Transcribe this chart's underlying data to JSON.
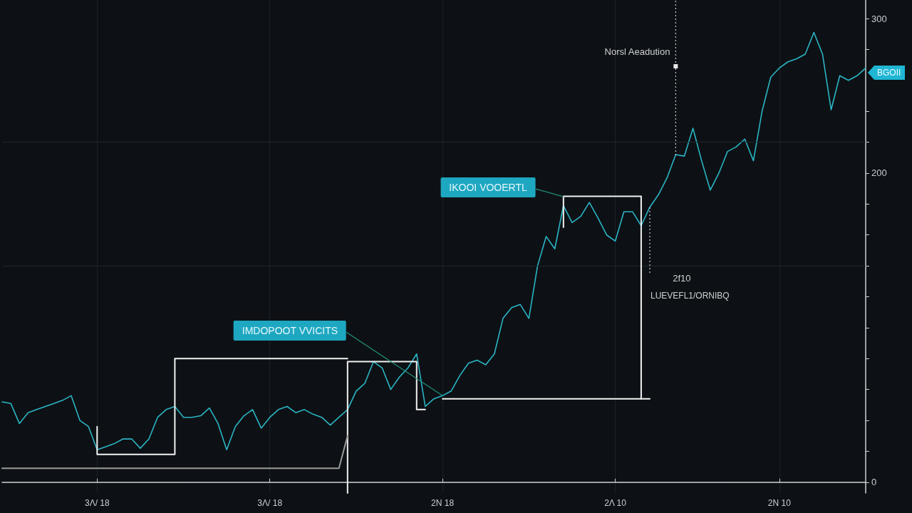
{
  "chart_data": {
    "type": "line",
    "categories": [
      null,
      null,
      null,
      null,
      null,
      null,
      null,
      null,
      null,
      null,
      null,
      "3Λ/ 18",
      null,
      null,
      null,
      null,
      null,
      null,
      null,
      null,
      null,
      null,
      null,
      null,
      null,
      null,
      null,
      null,
      null,
      null,
      null,
      "3Λ/ 18",
      null,
      null,
      null,
      null,
      null,
      null,
      null,
      null,
      null,
      null,
      null,
      null,
      null,
      null,
      null,
      null,
      null,
      null,
      null,
      "2N 18",
      null,
      null,
      null,
      null,
      null,
      null,
      null,
      null,
      null,
      null,
      null,
      null,
      null,
      null,
      null,
      null,
      null,
      null,
      null,
      "2Λ 10",
      null,
      null,
      null,
      null,
      null,
      null,
      null,
      null,
      null,
      null,
      null,
      null,
      null,
      null,
      null,
      null,
      null,
      null,
      "2N 10",
      null,
      null,
      null,
      null,
      null,
      null,
      null,
      null,
      null,
      null
    ],
    "series": [
      {
        "color": "#2bb5c5",
        "values": [
          52,
          51,
          38,
          45,
          47,
          49,
          51,
          53,
          56,
          40,
          36,
          21,
          23,
          25,
          28,
          28,
          22,
          28,
          42,
          47,
          49,
          42,
          42,
          43,
          48,
          38,
          21,
          36,
          43,
          47,
          35,
          42,
          47,
          49,
          45,
          47,
          44,
          42,
          37,
          42,
          47,
          59,
          64,
          78,
          74,
          60,
          68,
          74,
          83,
          49,
          54,
          56,
          59,
          69,
          77,
          79,
          76,
          83,
          106,
          113,
          115,
          106,
          140,
          159,
          151,
          179,
          168,
          172,
          181,
          171,
          160,
          156,
          175,
          175,
          166,
          178,
          186,
          197,
          212,
          211,
          229,
          208,
          189,
          200,
          214,
          217,
          222,
          208,
          240,
          262,
          268,
          272,
          274,
          277,
          291,
          277,
          241,
          263,
          260,
          263,
          268
        ]
      },
      {
        "type": "step",
        "color": "#f2f2f2",
        "values": [
          null,
          null,
          null,
          null,
          null,
          null,
          null,
          null,
          null,
          null,
          null,
          36,
          18,
          18,
          18,
          18,
          18,
          18,
          18,
          18,
          18,
          80,
          80,
          80,
          80,
          80,
          80,
          80,
          80,
          80,
          80,
          80,
          80,
          80,
          80,
          80,
          80,
          80,
          80,
          80,
          80,
          null,
          null,
          null,
          null,
          null,
          null,
          null,
          null,
          null,
          null,
          null,
          null,
          null,
          null,
          null,
          null,
          null,
          null,
          null,
          null,
          null,
          null,
          null,
          null,
          null,
          null,
          null,
          null,
          null,
          null,
          null,
          null,
          null,
          null,
          null,
          null,
          null,
          null,
          null,
          null,
          null,
          null,
          null,
          null,
          null,
          null,
          null,
          null,
          null,
          null,
          null,
          null,
          null,
          null,
          null,
          null,
          null,
          null,
          null,
          null
        ]
      },
      {
        "type": "step",
        "color": "#f2f2f2",
        "values": [
          null,
          null,
          null,
          null,
          null,
          null,
          null,
          null,
          null,
          null,
          null,
          null,
          null,
          null,
          null,
          null,
          null,
          null,
          null,
          null,
          null,
          null,
          null,
          null,
          null,
          null,
          null,
          null,
          null,
          null,
          null,
          null,
          null,
          null,
          null,
          null,
          null,
          null,
          null,
          null,
          -7,
          78,
          78,
          78,
          78,
          78,
          78,
          78,
          78,
          47,
          null,
          null,
          null,
          null,
          null,
          null,
          null,
          null,
          null,
          null,
          null,
          null,
          null,
          null,
          null,
          null,
          null,
          null,
          null,
          null,
          null,
          null,
          null,
          null,
          null,
          null,
          null,
          null,
          null,
          null,
          null,
          null,
          null,
          null,
          null,
          null,
          null,
          null,
          null,
          null,
          null,
          null,
          null,
          null,
          null,
          null,
          null,
          null,
          null,
          null,
          null
        ]
      },
      {
        "type": "step",
        "color": "#f2f2f2",
        "values": [
          null,
          null,
          null,
          null,
          null,
          null,
          null,
          null,
          null,
          null,
          null,
          null,
          null,
          null,
          null,
          null,
          null,
          null,
          null,
          null,
          null,
          null,
          null,
          null,
          null,
          null,
          null,
          null,
          null,
          null,
          null,
          null,
          null,
          null,
          null,
          null,
          null,
          null,
          null,
          null,
          null,
          null,
          null,
          null,
          null,
          null,
          null,
          null,
          null,
          null,
          null,
          null,
          null,
          null,
          null,
          null,
          null,
          null,
          null,
          null,
          null,
          null,
          null,
          null,
          null,
          165,
          185,
          185,
          185,
          185,
          185,
          185,
          185,
          185,
          185,
          54,
          null,
          null,
          null,
          null,
          null,
          null,
          null,
          null,
          null,
          null,
          null,
          null,
          null,
          null,
          null,
          null,
          null,
          null,
          null,
          null,
          null,
          null,
          null,
          null,
          null
        ]
      },
      {
        "color": "#f2f2f2",
        "values": [
          null,
          null,
          null,
          null,
          null,
          null,
          null,
          null,
          null,
          null,
          null,
          null,
          null,
          null,
          null,
          null,
          null,
          null,
          null,
          null,
          null,
          null,
          null,
          null,
          null,
          null,
          null,
          null,
          null,
          null,
          null,
          null,
          null,
          null,
          null,
          null,
          null,
          null,
          null,
          null,
          null,
          null,
          null,
          null,
          null,
          null,
          null,
          null,
          null,
          null,
          null,
          54,
          54,
          54,
          54,
          54,
          54,
          54,
          54,
          54,
          54,
          54,
          54,
          54,
          54,
          54,
          54,
          54,
          54,
          54,
          54,
          54,
          54,
          54,
          54,
          null,
          null,
          null,
          null,
          null,
          null,
          null,
          null,
          null,
          null,
          null,
          null,
          null,
          null,
          null,
          null,
          null,
          null,
          null,
          null,
          null,
          null,
          null,
          null,
          null,
          null
        ]
      },
      {
        "color": "#9a9a9a",
        "values": [
          9,
          9,
          9,
          9,
          9,
          9,
          9,
          9,
          9,
          9,
          9,
          9,
          9,
          9,
          9,
          9,
          9,
          9,
          9,
          9,
          9,
          9,
          9,
          9,
          9,
          9,
          9,
          9,
          9,
          9,
          9,
          9,
          9,
          9,
          9,
          9,
          9,
          9,
          9,
          9,
          30,
          null,
          null,
          null,
          null,
          null,
          null,
          null,
          null,
          null,
          null,
          null,
          null,
          null,
          null,
          null,
          null,
          null,
          null,
          null,
          null,
          null,
          null,
          null,
          null,
          null,
          null,
          null,
          null,
          null,
          null,
          null,
          null,
          null,
          null,
          null,
          null,
          null,
          null,
          null,
          null,
          null,
          null,
          null,
          null,
          null,
          null,
          null,
          null,
          null,
          null,
          null,
          null,
          null,
          null,
          null,
          null,
          null,
          null,
          null,
          null
        ]
      }
    ],
    "ylim": [
      -7,
      312
    ],
    "yticks": [
      0,
      {
        "value": 20,
        "label": null
      },
      {
        "value": 40,
        "label": null
      },
      {
        "value": 60,
        "label": null
      },
      {
        "value": 80,
        "label": null
      },
      {
        "value": 100,
        "label": null
      },
      {
        "value": 120,
        "label": null
      },
      {
        "value": 140,
        "label": null
      },
      {
        "value": 160,
        "label": null
      },
      {
        "value": 180,
        "label": null
      },
      200,
      {
        "value": 220,
        "label": null
      },
      {
        "value": 240,
        "label": null
      },
      {
        "value": 280,
        "label": null
      },
      300
    ],
    "grid": "x",
    "ref_lines": [
      {
        "axis": "y",
        "value": 220,
        "color": "#1c282d"
      },
      {
        "axis": "y",
        "value": 140,
        "color": "#1c282d"
      }
    ],
    "annotations": [
      {
        "text": "IMDOPOOT VVICITS",
        "x": "2N 18",
        "y": 56
      },
      "IKOOI VOOERTL",
      "Norsl Aeadution",
      "2f10",
      "LUEVEFL1/ORNIBQ",
      "BGOII"
    ]
  }
}
